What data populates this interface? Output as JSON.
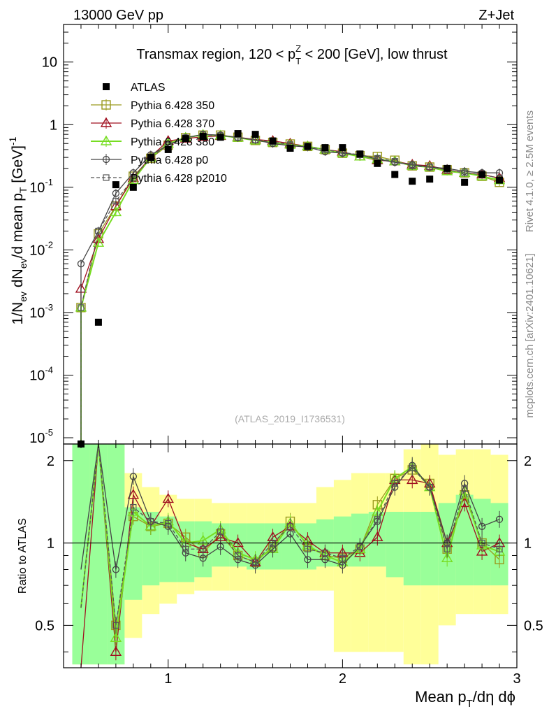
{
  "header": {
    "left": "13000 GeV pp",
    "right": "Z+Jet"
  },
  "chart_data": {
    "type": "line",
    "title": "Transmax region, 120 < p_T^Z < 200 [GeV], low thrust",
    "title_parts": {
      "pre": "Transmax region, 120 < p",
      "sup": "Z",
      "sub": "T",
      "post": " < 200 [GeV], low thrust"
    },
    "analysis_label": "(ATLAS_2019_I1736531)",
    "side_label_top": "Rivet 4.1.0, ≥ 2.5M events",
    "side_label_bottom": "mcplots.cern.ch [arXiv:2401.10621]",
    "xlabel": "Mean p_T/dη dφ",
    "xlabel_parts": {
      "pre": "Mean p",
      "sub": "T",
      "post": "/dη dϕ"
    },
    "ylabel": "1/N_ev dN_ev/d mean p_T [GeV]^-1",
    "ylabel_parts": {
      "a": "1/N",
      "a_sub": "ev",
      "b": " dN",
      "b_sub": "ev",
      "c": "/d mean p",
      "c_sub": "T",
      "d": " [GeV]",
      "d_sup": "-1"
    },
    "ratio_ylabel": "Ratio to ATLAS",
    "xlim": [
      0.4,
      3.0
    ],
    "ylim_log": [
      -5.1,
      1.6
    ],
    "ratio_ylim": [
      0.35,
      2.3
    ],
    "x_ticks": [
      1,
      2,
      3
    ],
    "x_tick_labels": [
      "1",
      "2",
      "3"
    ],
    "y_ticks": [
      {
        "base": "10",
        "exp": "-5",
        "value": -5
      },
      {
        "base": "10",
        "exp": "-4",
        "value": -4
      },
      {
        "base": "10",
        "exp": "-3",
        "value": -3
      },
      {
        "base": "10",
        "exp": "-2",
        "value": -2
      },
      {
        "base": "10",
        "exp": "-1",
        "value": -1
      },
      {
        "base": "1",
        "exp": "",
        "value": 0
      },
      {
        "base": "10",
        "exp": "",
        "value": 1
      }
    ],
    "ratio_ticks": [
      0.5,
      1,
      2
    ],
    "ratio_tick_labels": [
      "0.5",
      "1",
      "2"
    ],
    "x": [
      0.5,
      0.6,
      0.7,
      0.8,
      0.9,
      1.0,
      1.1,
      1.2,
      1.3,
      1.4,
      1.5,
      1.6,
      1.7,
      1.8,
      1.9,
      2.0,
      2.1,
      2.2,
      2.3,
      2.4,
      2.5,
      2.6,
      2.7,
      2.8,
      2.9
    ],
    "data": {
      "name": "ATLAS",
      "values": [
        7.5e-06,
        0.0007,
        0.11,
        0.1,
        0.3,
        0.4,
        0.6,
        0.65,
        0.63,
        0.72,
        0.7,
        0.55,
        0.42,
        0.45,
        0.43,
        0.43,
        0.34,
        0.24,
        0.16,
        0.125,
        0.135,
        0.2,
        0.12,
        0.16,
        0.13
      ]
    },
    "series": [
      {
        "name": "Pythia 6.428 350",
        "color": "#9a9a1e",
        "marker": "square-open",
        "dash": "",
        "values": [
          0.0012,
          0.018,
          0.05,
          0.15,
          0.29,
          0.47,
          0.62,
          0.68,
          0.68,
          0.63,
          0.56,
          0.52,
          0.49,
          0.45,
          0.4,
          0.35,
          0.32,
          0.31,
          0.27,
          0.22,
          0.21,
          0.19,
          0.17,
          0.15,
          0.12
        ],
        "ratio": [
          0.58,
          2.5,
          0.5,
          1.25,
          1.15,
          1.18,
          1.05,
          0.92,
          1.08,
          0.9,
          0.85,
          0.97,
          1.2,
          0.97,
          0.9,
          0.88,
          0.95,
          1.38,
          1.72,
          1.85,
          1.65,
          0.95,
          1.5,
          1.0,
          0.87
        ]
      },
      {
        "name": "Pythia 6.428 370",
        "color": "#a01020",
        "marker": "triangle-open",
        "dash": "",
        "values": [
          0.0024,
          0.015,
          0.05,
          0.14,
          0.31,
          0.55,
          0.6,
          0.64,
          0.66,
          0.63,
          0.58,
          0.55,
          0.5,
          0.45,
          0.4,
          0.37,
          0.31,
          0.27,
          0.26,
          0.23,
          0.22,
          0.19,
          0.17,
          0.16,
          0.14
        ],
        "ratio": [
          0.0,
          2.5,
          0.4,
          1.5,
          1.15,
          1.45,
          1.0,
          0.95,
          1.05,
          1.0,
          0.85,
          1.05,
          1.15,
          1.02,
          0.92,
          0.92,
          0.92,
          1.05,
          1.7,
          1.7,
          1.65,
          1.0,
          1.4,
          0.93,
          1.0
        ]
      },
      {
        "name": "Pythia 6.428 380",
        "color": "#77dd22",
        "marker": "triangle-open",
        "dash": "",
        "values": [
          0.0012,
          0.013,
          0.04,
          0.13,
          0.3,
          0.5,
          0.62,
          0.69,
          0.67,
          0.62,
          0.56,
          0.52,
          0.48,
          0.45,
          0.4,
          0.35,
          0.31,
          0.28,
          0.26,
          0.22,
          0.21,
          0.18,
          0.17,
          0.15,
          0.13
        ],
        "ratio": [
          0.58,
          2.5,
          0.45,
          1.3,
          1.15,
          1.2,
          1.0,
          1.02,
          1.12,
          0.92,
          0.87,
          0.95,
          1.18,
          0.98,
          0.9,
          0.85,
          0.95,
          1.3,
          1.72,
          1.9,
          1.6,
          0.88,
          1.55,
          0.98,
          0.93
        ]
      },
      {
        "name": "Pythia 6.428 p0",
        "color": "#444444",
        "marker": "circle-open",
        "dash": "",
        "values": [
          0.006,
          0.02,
          0.08,
          0.17,
          0.33,
          0.47,
          0.62,
          0.7,
          0.68,
          0.62,
          0.57,
          0.5,
          0.46,
          0.44,
          0.37,
          0.35,
          0.33,
          0.28,
          0.25,
          0.23,
          0.21,
          0.2,
          0.18,
          0.17,
          0.17
        ],
        "ratio": [
          0.8,
          2.5,
          0.8,
          1.75,
          1.2,
          1.15,
          0.92,
          0.88,
          0.97,
          0.87,
          0.83,
          0.95,
          1.08,
          0.87,
          0.87,
          0.83,
          0.97,
          1.2,
          1.6,
          1.92,
          1.6,
          1.0,
          1.65,
          1.15,
          1.22
        ]
      },
      {
        "name": "Pythia 6.428 p2010",
        "color": "#555555",
        "marker": "square-open-small",
        "dash": "5,3",
        "values": [
          0.0012,
          0.02,
          0.06,
          0.14,
          0.3,
          0.48,
          0.62,
          0.69,
          0.67,
          0.63,
          0.57,
          0.53,
          0.48,
          0.44,
          0.4,
          0.36,
          0.33,
          0.29,
          0.26,
          0.22,
          0.21,
          0.19,
          0.17,
          0.16,
          0.14
        ],
        "ratio": [
          0.58,
          2.5,
          0.5,
          1.35,
          1.2,
          1.18,
          0.95,
          0.95,
          1.1,
          0.9,
          0.85,
          1.0,
          1.15,
          0.95,
          0.92,
          0.88,
          0.97,
          1.22,
          1.65,
          1.88,
          1.6,
          0.95,
          1.58,
          1.0,
          0.95
        ]
      }
    ],
    "ratio_bands": {
      "edges": [
        0.45,
        0.55,
        0.65,
        0.75,
        0.85,
        0.95,
        1.05,
        1.15,
        1.25,
        1.35,
        1.45,
        1.55,
        1.65,
        1.75,
        1.85,
        1.95,
        2.05,
        2.15,
        2.25,
        2.35,
        2.45,
        2.55,
        2.65,
        2.75,
        2.85,
        2.95
      ],
      "green_lo": [
        0.3,
        0.3,
        0.3,
        0.62,
        0.7,
        0.72,
        0.72,
        0.75,
        0.82,
        0.82,
        0.8,
        0.8,
        0.8,
        0.8,
        0.82,
        0.82,
        0.82,
        0.82,
        0.75,
        0.7,
        0.7,
        0.7,
        0.7,
        0.7,
        0.7
      ],
      "green_hi": [
        2.5,
        2.5,
        2.5,
        1.35,
        1.3,
        1.25,
        1.2,
        1.2,
        1.18,
        1.18,
        1.18,
        1.18,
        1.18,
        1.18,
        1.22,
        1.25,
        1.28,
        1.3,
        1.3,
        1.3,
        1.3,
        1.4,
        1.5,
        1.45,
        1.4
      ],
      "yellow_lo": [
        0.3,
        0.3,
        0.3,
        0.45,
        0.55,
        0.6,
        0.65,
        0.67,
        0.67,
        0.67,
        0.67,
        0.67,
        0.67,
        0.67,
        0.67,
        0.4,
        0.4,
        0.4,
        0.4,
        0.35,
        0.35,
        0.5,
        0.55,
        0.55,
        0.55
      ],
      "yellow_hi": [
        2.5,
        2.5,
        2.5,
        1.8,
        1.6,
        1.5,
        1.45,
        1.45,
        1.4,
        1.4,
        1.4,
        1.4,
        1.4,
        1.4,
        1.6,
        1.7,
        1.8,
        1.8,
        1.8,
        2.2,
        2.3,
        2.1,
        2.2,
        2.2,
        2.1
      ]
    },
    "band_colors": {
      "green": "#99ff99",
      "yellow": "#ffff99"
    }
  }
}
